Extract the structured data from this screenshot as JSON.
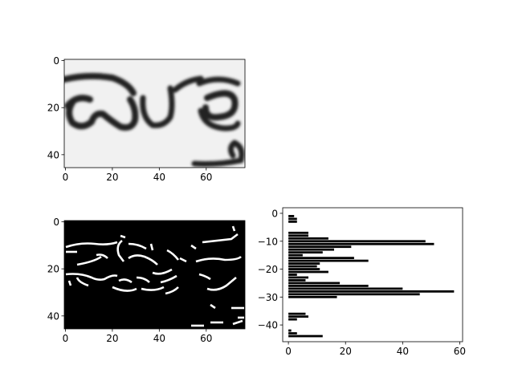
{
  "chart_data": [
    {
      "type": "image",
      "title": "",
      "xlim": [
        -0.5,
        76.5
      ],
      "ylim": [
        45.5,
        -0.5
      ],
      "xticks": [
        0,
        20,
        40,
        60
      ],
      "yticks": [
        0,
        20,
        40
      ],
      "content": "grayscale scan of handwritten script (gray colormap)"
    },
    {
      "type": "image",
      "title": "",
      "xlim": [
        -0.5,
        76.5
      ],
      "ylim": [
        45.5,
        -0.5
      ],
      "xticks": [
        0,
        20,
        40,
        60
      ],
      "yticks": [
        0,
        20,
        40
      ],
      "content": "binary edge map (white on black)"
    },
    {
      "type": "bar",
      "orientation": "horizontal",
      "title": "",
      "xlim": [
        -2,
        61
      ],
      "ylim": [
        -46,
        2
      ],
      "xticks": [
        0,
        20,
        40,
        60
      ],
      "yticks": [
        0,
        -10,
        -20,
        -30,
        -40
      ],
      "bar_color": "#000000",
      "rows": [
        -1,
        -2,
        -3,
        -4,
        -5,
        -6,
        -7,
        -8,
        -9,
        -10,
        -11,
        -12,
        -13,
        -14,
        -15,
        -16,
        -17,
        -18,
        -19,
        -20,
        -21,
        -22,
        -23,
        -24,
        -25,
        -26,
        -27,
        -28,
        -29,
        -30,
        -31,
        -32,
        -33,
        -34,
        -35,
        -36,
        -37,
        -38,
        -39,
        -40,
        -41,
        -42,
        -43,
        -44
      ],
      "values": [
        2,
        3,
        3,
        0,
        0,
        0,
        7,
        7,
        14,
        48,
        51,
        22,
        16,
        12,
        5,
        23,
        28,
        11,
        10,
        11,
        14,
        3,
        7,
        6,
        18,
        28,
        40,
        58,
        46,
        17,
        0,
        0,
        0,
        0,
        0,
        6,
        7,
        3,
        0,
        0,
        0,
        1,
        3,
        12
      ]
    }
  ]
}
